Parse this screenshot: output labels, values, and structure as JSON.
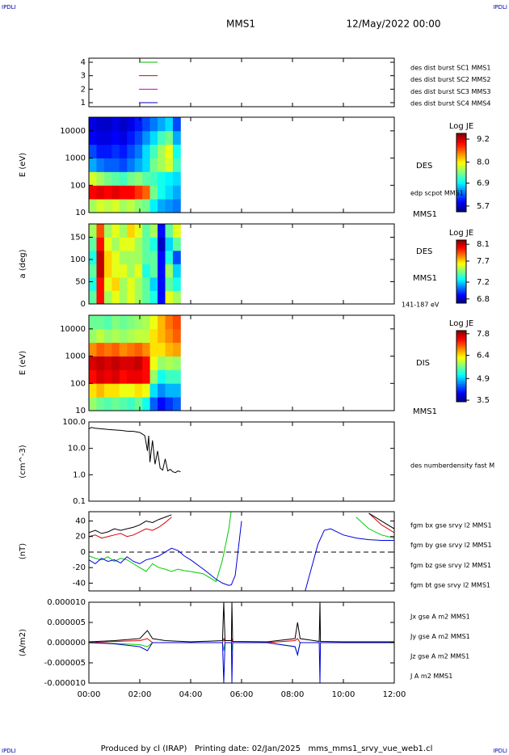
{
  "header": {
    "mission": "MMS1",
    "date": "12/May/2022 00:00",
    "corners": [
      "IPDLI",
      "IPDLI",
      "IPDLI",
      "IPDLI"
    ]
  },
  "footer": "Produced by cl (IRAP)   Printing date: 02/Jan/2025   mms_mms1_srvy_vue_web1.cl",
  "chart_data": [
    {
      "type": "line",
      "xlim": [
        0,
        12
      ],
      "ylim": [
        0.7,
        4.3
      ],
      "yticks": [
        1,
        2,
        3,
        4
      ],
      "series": [
        {
          "name": "des dist burst SC1 MMS1",
          "color": "#0000cc",
          "x": [
            1.97,
            2.7
          ],
          "values": [
            1,
            1
          ]
        },
        {
          "name": "des dist burst SC2 MMS2",
          "color": "#cc00cc",
          "x": [
            1.97,
            2.7
          ],
          "values": [
            2,
            2
          ]
        },
        {
          "name": "des dist burst SC3 MMS3",
          "color": "#dd0000",
          "x": [
            1.97,
            2.7
          ],
          "values": [
            3,
            3
          ]
        },
        {
          "name": "des dist burst SC4 MMS4",
          "color": "#00bb00",
          "x": [
            1.97,
            2.7
          ],
          "values": [
            4,
            4
          ]
        }
      ]
    },
    {
      "type": "heatmap",
      "ylabel": "E (eV)",
      "log": true,
      "xlim": [
        0,
        12
      ],
      "ylim": [
        10,
        31623
      ],
      "yticks": [
        10,
        100,
        1000,
        10000
      ],
      "labels": [
        "DES",
        "edp scpot MMS1",
        "MMS1"
      ],
      "colorbar_title": "Log JE",
      "zlim": [
        5.4,
        9.5
      ],
      "zticks": [
        9.2,
        {
          "value": 8,
          "label": "8.0"
        },
        6.9,
        5.7
      ],
      "x_edges": [
        0,
        0.3,
        0.6,
        0.9,
        1.2,
        1.5,
        1.8,
        2.1,
        2.4,
        2.7,
        3.0,
        3.3,
        3.6
      ],
      "y_edges": [
        10,
        31.6,
        100,
        316,
        1000,
        3162,
        10000,
        31623
      ],
      "z": [
        [
          7.6,
          7.8,
          7.7,
          7.8,
          7.6,
          7.7,
          7.5,
          7.4,
          6.9,
          6.6,
          6.5,
          6.4
        ],
        [
          9.0,
          9.1,
          9.0,
          9.1,
          9.0,
          9.0,
          8.8,
          8.6,
          7.4,
          7.0,
          6.8,
          6.6
        ],
        [
          7.8,
          7.6,
          7.4,
          7.3,
          7.2,
          7.4,
          7.5,
          7.3,
          7.2,
          7.0,
          6.9,
          6.8
        ],
        [
          6.6,
          6.4,
          6.3,
          6.3,
          6.2,
          6.4,
          6.6,
          6.8,
          7.4,
          7.6,
          7.8,
          7.2
        ],
        [
          6.2,
          6.0,
          6.0,
          6.1,
          6.0,
          6.2,
          6.4,
          6.8,
          7.2,
          7.6,
          7.9,
          7.0
        ],
        [
          5.9,
          5.8,
          5.8,
          5.9,
          5.8,
          6.0,
          6.2,
          6.5,
          6.8,
          7.2,
          7.4,
          6.6
        ],
        [
          5.8,
          5.7,
          5.7,
          5.8,
          5.7,
          5.8,
          6.0,
          6.2,
          6.4,
          6.6,
          6.8,
          6.2
        ]
      ]
    },
    {
      "type": "heatmap",
      "ylabel": "a (deg)",
      "xlim": [
        0,
        12
      ],
      "ylim": [
        0,
        180
      ],
      "yticks": [
        0,
        50,
        100,
        150
      ],
      "labels": [
        "DES",
        "MMS1",
        "141-187 eV"
      ],
      "colorbar_title": "Log JE",
      "zlim": [
        6.7,
        8.2
      ],
      "zticks": [
        8.1,
        7.7,
        7.2,
        6.8
      ],
      "x_edges": [
        0,
        0.3,
        0.6,
        0.9,
        1.2,
        1.5,
        1.8,
        2.1,
        2.4,
        2.7,
        3.0,
        3.3,
        3.6
      ],
      "y_edges": [
        0,
        30,
        60,
        90,
        120,
        150,
        180
      ],
      "z": [
        [
          7.4,
          8.0,
          7.5,
          7.6,
          7.5,
          7.6,
          7.5,
          7.4,
          7.3,
          6.9,
          7.6,
          7.5
        ],
        [
          7.3,
          8.0,
          7.6,
          7.7,
          7.5,
          7.6,
          7.5,
          7.4,
          7.2,
          6.9,
          7.4,
          7.3
        ],
        [
          7.4,
          8.1,
          7.7,
          7.6,
          7.6,
          7.5,
          7.6,
          7.3,
          7.4,
          6.9,
          7.5,
          7.2
        ],
        [
          7.3,
          8.1,
          7.7,
          7.6,
          7.5,
          7.5,
          7.5,
          7.4,
          7.4,
          6.9,
          7.3,
          7.0
        ],
        [
          7.4,
          8.0,
          7.6,
          7.5,
          7.6,
          7.6,
          7.5,
          7.4,
          7.3,
          6.8,
          7.2,
          7.4
        ],
        [
          7.5,
          7.9,
          7.5,
          7.6,
          7.5,
          7.7,
          7.6,
          7.4,
          7.5,
          6.9,
          7.4,
          7.6
        ]
      ]
    },
    {
      "type": "heatmap",
      "ylabel": "E (eV)",
      "log": true,
      "xlim": [
        0,
        12
      ],
      "ylim": [
        10,
        31623
      ],
      "yticks": [
        10,
        100,
        1000,
        10000
      ],
      "labels": [
        "DIS",
        "MMS1"
      ],
      "colorbar_title": "Log JE",
      "zlim": [
        3.4,
        8.0
      ],
      "zticks": [
        7.8,
        6.4,
        4.9,
        3.5
      ],
      "x_edges": [
        0,
        0.3,
        0.6,
        0.9,
        1.2,
        1.5,
        1.8,
        2.1,
        2.4,
        2.7,
        3.0,
        3.3,
        3.6
      ],
      "y_edges": [
        10,
        31.6,
        100,
        316,
        1000,
        3162,
        10000,
        31623
      ],
      "z": [
        [
          5.8,
          5.6,
          5.5,
          5.6,
          5.5,
          5.4,
          5.6,
          5.2,
          4.4,
          4.0,
          4.2,
          4.4
        ],
        [
          6.4,
          6.6,
          6.4,
          6.4,
          6.2,
          6.2,
          6.4,
          6.2,
          5.0,
          4.6,
          4.8,
          4.8
        ],
        [
          7.4,
          7.6,
          7.5,
          7.6,
          7.4,
          7.5,
          7.5,
          7.4,
          5.8,
          5.2,
          5.4,
          5.4
        ],
        [
          7.6,
          7.7,
          7.6,
          7.7,
          7.6,
          7.6,
          7.7,
          7.4,
          6.2,
          5.8,
          5.9,
          5.8
        ],
        [
          6.8,
          7.0,
          6.9,
          7.0,
          6.8,
          6.9,
          7.0,
          6.8,
          6.4,
          6.4,
          6.6,
          6.7
        ],
        [
          5.8,
          6.0,
          5.8,
          5.9,
          5.8,
          5.9,
          6.0,
          6.0,
          6.4,
          6.6,
          6.8,
          7.0
        ],
        [
          5.6,
          5.6,
          5.5,
          5.7,
          5.6,
          5.7,
          5.8,
          5.9,
          6.2,
          6.6,
          6.9,
          7.1
        ]
      ]
    },
    {
      "type": "line",
      "ylabel": "(cm^-3)",
      "log": true,
      "xlim": [
        0,
        12
      ],
      "ylim": [
        0.1,
        100
      ],
      "yticks": [
        {
          "value": 100,
          "label": "100.0"
        },
        {
          "value": 10,
          "label": "10.0"
        },
        {
          "value": 1,
          "label": "1.0"
        },
        0.1
      ],
      "x": [
        0,
        0.1,
        0.25,
        0.5,
        0.75,
        1.0,
        1.25,
        1.5,
        1.75,
        2.0,
        2.1,
        2.2,
        2.3,
        2.35,
        2.4,
        2.5,
        2.6,
        2.7,
        2.8,
        2.9,
        3.0,
        3.1,
        3.2,
        3.3,
        3.4,
        3.5,
        3.6
      ],
      "series": [
        {
          "name": "des numberdensity fast M",
          "color": "#000000",
          "values": [
            55,
            62,
            58,
            55,
            52,
            50,
            48,
            45,
            44,
            40,
            35,
            30,
            8,
            30,
            3,
            20,
            2.5,
            8,
            1.8,
            1.5,
            4,
            1.4,
            1.6,
            1.3,
            1.2,
            1.4,
            1.3
          ]
        }
      ]
    },
    {
      "type": "line",
      "ylabel": "(nT)",
      "xlim": [
        0,
        12
      ],
      "ylim": [
        -50,
        52
      ],
      "yticks": [
        -40,
        -20,
        0,
        20,
        40
      ],
      "zero_line": true,
      "x": [
        0,
        0.25,
        0.5,
        0.75,
        1.0,
        1.25,
        1.5,
        1.75,
        2.0,
        2.25,
        2.5,
        2.75,
        3.0,
        3.25,
        3.5,
        3.75,
        4.0,
        4.5,
        5.0,
        5.25,
        5.5,
        5.6,
        5.75,
        6.0,
        6.5,
        7.0,
        7.5,
        8.0,
        8.5,
        9.0,
        9.25,
        9.5,
        10.0,
        10.5,
        11.0,
        11.5,
        12.0
      ],
      "series": [
        {
          "name": "fgm bx gse srvy l2 MMS1",
          "color": "#dd0000",
          "values": [
            20,
            22,
            18,
            20,
            22,
            24,
            20,
            22,
            26,
            30,
            28,
            32,
            38,
            45,
            null,
            null,
            null,
            null,
            null,
            null,
            null,
            null,
            null,
            null,
            null,
            null,
            null,
            null,
            null,
            null,
            null,
            null,
            null,
            null,
            50,
            35,
            25
          ]
        },
        {
          "name": "fgm by gse srvy l2 MMS1",
          "color": "#00cc00",
          "values": [
            -5,
            -8,
            -10,
            -6,
            -12,
            -8,
            -10,
            -15,
            -20,
            -25,
            -15,
            -20,
            -22,
            -25,
            -22,
            -24,
            -25,
            -28,
            -38,
            -10,
            30,
            55,
            null,
            null,
            null,
            null,
            null,
            null,
            null,
            null,
            null,
            null,
            null,
            45,
            30,
            22,
            18
          ]
        },
        {
          "name": "fgm bz gse srvy l2 MMS1",
          "color": "#0000dd",
          "values": [
            -10,
            -15,
            -8,
            -12,
            -10,
            -14,
            -6,
            -12,
            -15,
            -10,
            -8,
            -5,
            0,
            5,
            2,
            -5,
            -10,
            -22,
            -35,
            -40,
            -43,
            -42,
            -30,
            40,
            null,
            null,
            null,
            null,
            -50,
            10,
            28,
            30,
            22,
            18,
            16,
            15,
            15
          ]
        },
        {
          "name": "fgm bt gse srvy l2 MMS1",
          "color": "#000000",
          "values": [
            25,
            28,
            24,
            26,
            30,
            28,
            30,
            32,
            35,
            40,
            38,
            42,
            45,
            48,
            null,
            null,
            null,
            null,
            null,
            null,
            null,
            null,
            null,
            null,
            null,
            null,
            null,
            null,
            null,
            null,
            null,
            null,
            null,
            null,
            50,
            40,
            30
          ]
        }
      ]
    },
    {
      "type": "line",
      "ylabel": "(A/m2)",
      "xlim": [
        0,
        12
      ],
      "ylim": [
        -1e-05,
        1e-05
      ],
      "yticks": [
        {
          "value": 1e-05,
          "label": "0.000010"
        },
        {
          "value": 5e-06,
          "label": "0.000005"
        },
        {
          "value": 0,
          "label": "0.000000"
        },
        {
          "value": -5e-06,
          "label": "-0.000005"
        },
        {
          "value": -1e-05,
          "label": "-0.000010"
        }
      ],
      "xticks": [
        {
          "value": 0,
          "label": "00:00"
        },
        {
          "value": 2,
          "label": "02:00"
        },
        {
          "value": 4,
          "label": "04:00"
        },
        {
          "value": 6,
          "label": "06:00"
        },
        {
          "value": 8,
          "label": "08:00"
        },
        {
          "value": 10,
          "label": "10:00"
        },
        {
          "value": 12,
          "label": "12:00"
        }
      ],
      "x": [
        0,
        1,
        2,
        2.3,
        2.5,
        3,
        4,
        5.25,
        5.3,
        5.35,
        5.6,
        5.62,
        5.65,
        7,
        8.1,
        8.2,
        8.3,
        9.05,
        9.08,
        9.1,
        10,
        12
      ],
      "series": [
        {
          "name": "Jx gse A m2 MMS1",
          "color": "#dd0000",
          "values": [
            0,
            3e-07,
            5e-07,
            1e-06,
            0,
            0,
            0,
            0,
            1e-06,
            0,
            0,
            1e-06,
            0,
            0,
            5e-07,
            1e-06,
            0,
            0,
            0,
            0,
            0,
            0
          ]
        },
        {
          "name": "Jy gse A m2 MMS1",
          "color": "#00cc00",
          "values": [
            0,
            -2e-07,
            -5e-07,
            -1e-06,
            0,
            0,
            0,
            0,
            -2e-06,
            0,
            0,
            -2e-06,
            0,
            0,
            -1e-06,
            -3e-06,
            0,
            0,
            0,
            0,
            0,
            0
          ]
        },
        {
          "name": "Jz gse A m2 MMS1",
          "color": "#0000dd",
          "values": [
            0,
            -3e-07,
            -1e-06,
            -2e-06,
            0,
            0,
            0,
            0,
            -1e-05,
            0,
            0,
            -1e-05,
            0,
            0,
            -1e-06,
            -3e-06,
            0,
            0,
            -1e-05,
            0,
            0,
            0
          ]
        },
        {
          "name": "J A m2 MMS1",
          "color": "#000000",
          "values": [
            2e-07,
            5e-07,
            1e-06,
            3e-06,
            1e-06,
            5e-07,
            2e-07,
            5e-07,
            1e-05,
            5e-07,
            5e-07,
            1e-05,
            3e-07,
            2e-07,
            1e-06,
            5e-06,
            1e-06,
            3e-07,
            1e-05,
            3e-07,
            2e-07,
            2e-07
          ]
        }
      ]
    }
  ]
}
